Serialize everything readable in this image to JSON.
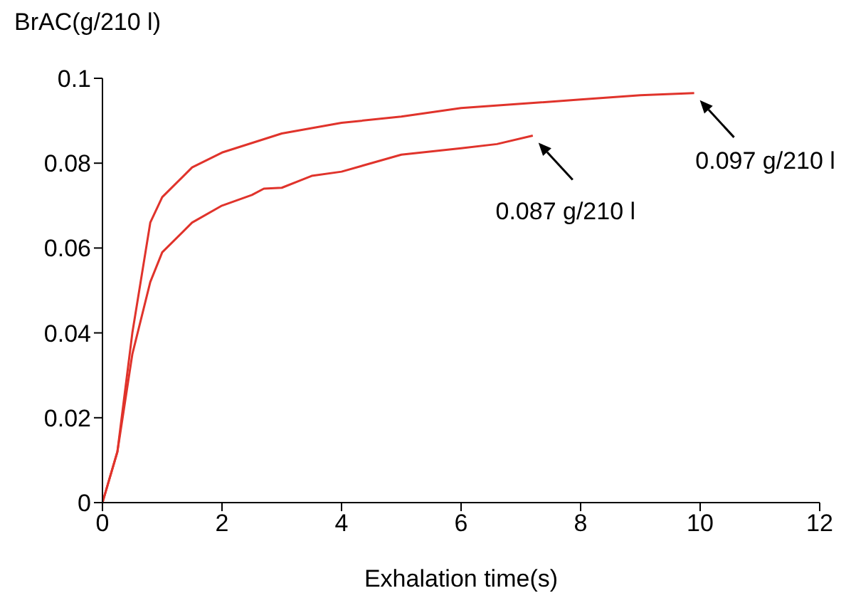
{
  "chart_data": {
    "type": "line",
    "xlabel": "Exhalation time(s)",
    "ylabel": "BrAC(g/210 l)",
    "xlim": [
      0,
      12
    ],
    "xticks": [
      0,
      2,
      4,
      6,
      8,
      10,
      12
    ],
    "ylim": [
      0,
      0.1
    ],
    "yticks": [
      0,
      0.02,
      0.04,
      0.06,
      0.08,
      0.1
    ],
    "marker": "none",
    "line_style": "solid",
    "series": [
      {
        "color": "#e0332b",
        "x": [
          0,
          0.25,
          0.5,
          0.8,
          1,
          1.5,
          2,
          3,
          4,
          5,
          6,
          7,
          8,
          9,
          9.9
        ],
        "values": [
          0,
          0.012,
          0.04,
          0.066,
          0.072,
          0.079,
          0.0825,
          0.087,
          0.0895,
          0.091,
          0.093,
          0.094,
          0.095,
          0.096,
          0.0965
        ]
      },
      {
        "color": "#e0332b",
        "x": [
          0,
          0.25,
          0.5,
          0.8,
          1,
          1.5,
          2,
          2.5,
          2.7,
          3,
          3.5,
          4,
          5,
          6,
          6.6,
          7.2
        ],
        "values": [
          0,
          0.012,
          0.035,
          0.052,
          0.059,
          0.066,
          0.07,
          0.0725,
          0.074,
          0.0742,
          0.077,
          0.078,
          0.082,
          0.0835,
          0.0845,
          0.0865
        ]
      }
    ],
    "annotations": [
      {
        "text": "0.097 g/210 l",
        "x": 9.9,
        "y": 0.0965
      },
      {
        "text": "0.087 g/210 l",
        "x": 7.2,
        "y": 0.0865
      }
    ]
  }
}
